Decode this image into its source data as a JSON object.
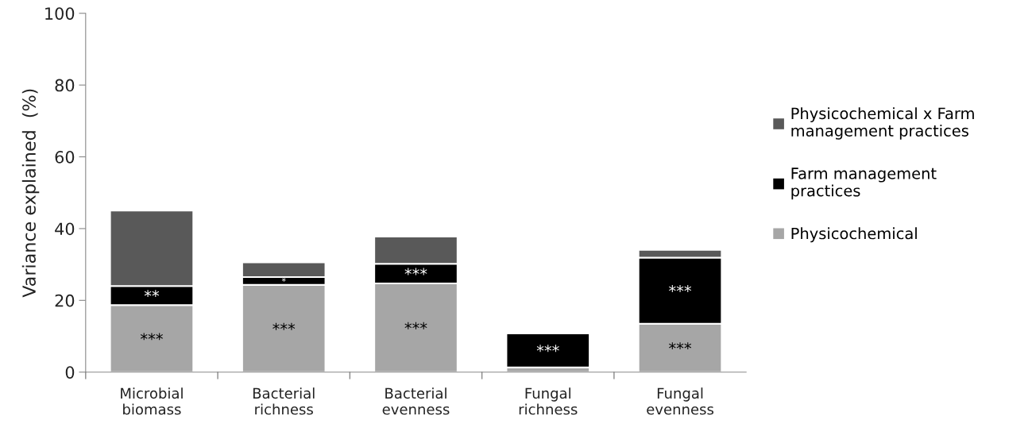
{
  "chart_data": {
    "type": "bar",
    "stacked": true,
    "ylabel": "Variance explained  (%)",
    "categories": [
      "Microbial biomass",
      "Bacterial richness",
      "Bacterial evenness",
      "Fungal richness",
      "Fungal evenness"
    ],
    "series": [
      {
        "name": "Physicochemical",
        "color": "#a6a6a6",
        "values": [
          18.7,
          24.3,
          24.7,
          1.3,
          13.5
        ],
        "value_labels": [
          "***",
          "***",
          "***",
          null,
          "***"
        ]
      },
      {
        "name": "Farm management practices",
        "color": "#000000",
        "values": [
          5.3,
          2.2,
          5.5,
          9.5,
          18.4
        ],
        "value_labels": [
          "**",
          "*",
          "***",
          "***",
          "***"
        ]
      },
      {
        "name": "Physicochemical x Farm management practices",
        "color": "#595959",
        "values": [
          21.0,
          4.1,
          7.6,
          0,
          2.2
        ]
      }
    ],
    "ylim": [
      0,
      100
    ],
    "yticks": [
      0,
      20,
      40,
      60,
      80,
      100
    ],
    "grid": false,
    "legend": "right"
  }
}
